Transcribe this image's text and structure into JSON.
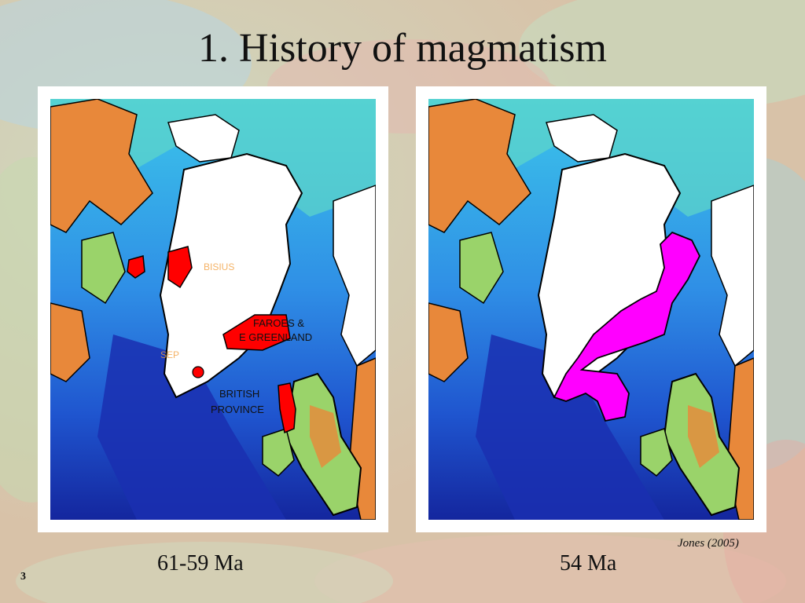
{
  "slide": {
    "title": "1. History of magmatism",
    "number": "3",
    "credit": "Jones (2005)"
  },
  "maps": [
    {
      "caption": "61-59 Ma",
      "province_color": "#ff0000",
      "labels": {
        "faroes": "FAROES &",
        "greenland": "E GREENLAND",
        "british": "BRITISH",
        "province": "PROVINCE",
        "faint_1": "BISIUS",
        "faint_2": "SEP"
      }
    },
    {
      "caption": "54 Ma",
      "province_color": "#ff00ff"
    }
  ],
  "colors": {
    "ocean_deep": "#1a33b8",
    "ocean_mid": "#2f8fe6",
    "ocean_shallow": "#3cc6ea",
    "shelf": "#7fe0b0",
    "land_low": "#9ad36a",
    "land_high": "#e8883a",
    "ice": "#ffffff"
  }
}
